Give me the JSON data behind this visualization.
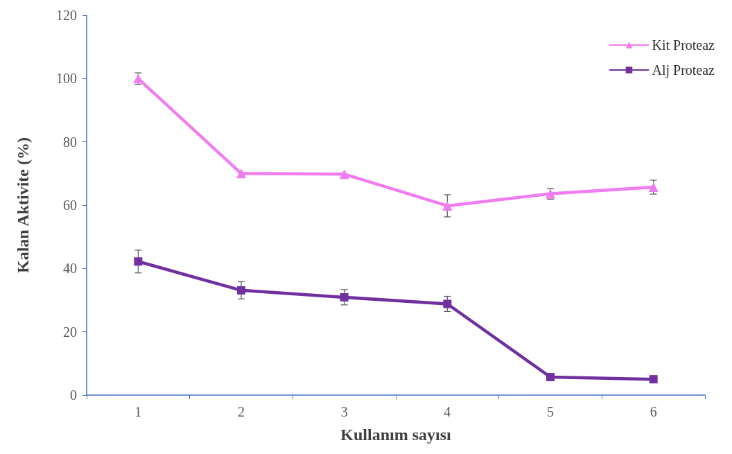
{
  "chart_data": {
    "type": "line",
    "xlabel": "Kullanım sayısı",
    "ylabel": "Kalan Aktivite (%)",
    "categories": [
      "1",
      "2",
      "3",
      "4",
      "5",
      "6"
    ],
    "series": [
      {
        "name": "Kit Proteaz",
        "color": "#f07cf0",
        "marker": "triangle",
        "values": [
          100,
          70,
          69.8,
          59.8,
          63.6,
          65.7
        ],
        "errors": [
          1.8,
          null,
          null,
          3.5,
          1.7,
          2.2
        ]
      },
      {
        "name": "Alj Proteaz",
        "color": "#7030a0",
        "marker": "square",
        "values": [
          42.2,
          33.1,
          30.9,
          28.8,
          5.7,
          5
        ],
        "errors": [
          3.6,
          2.7,
          2.4,
          2.4,
          null,
          null
        ]
      }
    ],
    "ylim": [
      0,
      120
    ],
    "yticks": [
      0,
      20,
      40,
      60,
      80,
      100,
      120
    ],
    "grid": false,
    "legend": "top right",
    "line_style": "solid"
  }
}
